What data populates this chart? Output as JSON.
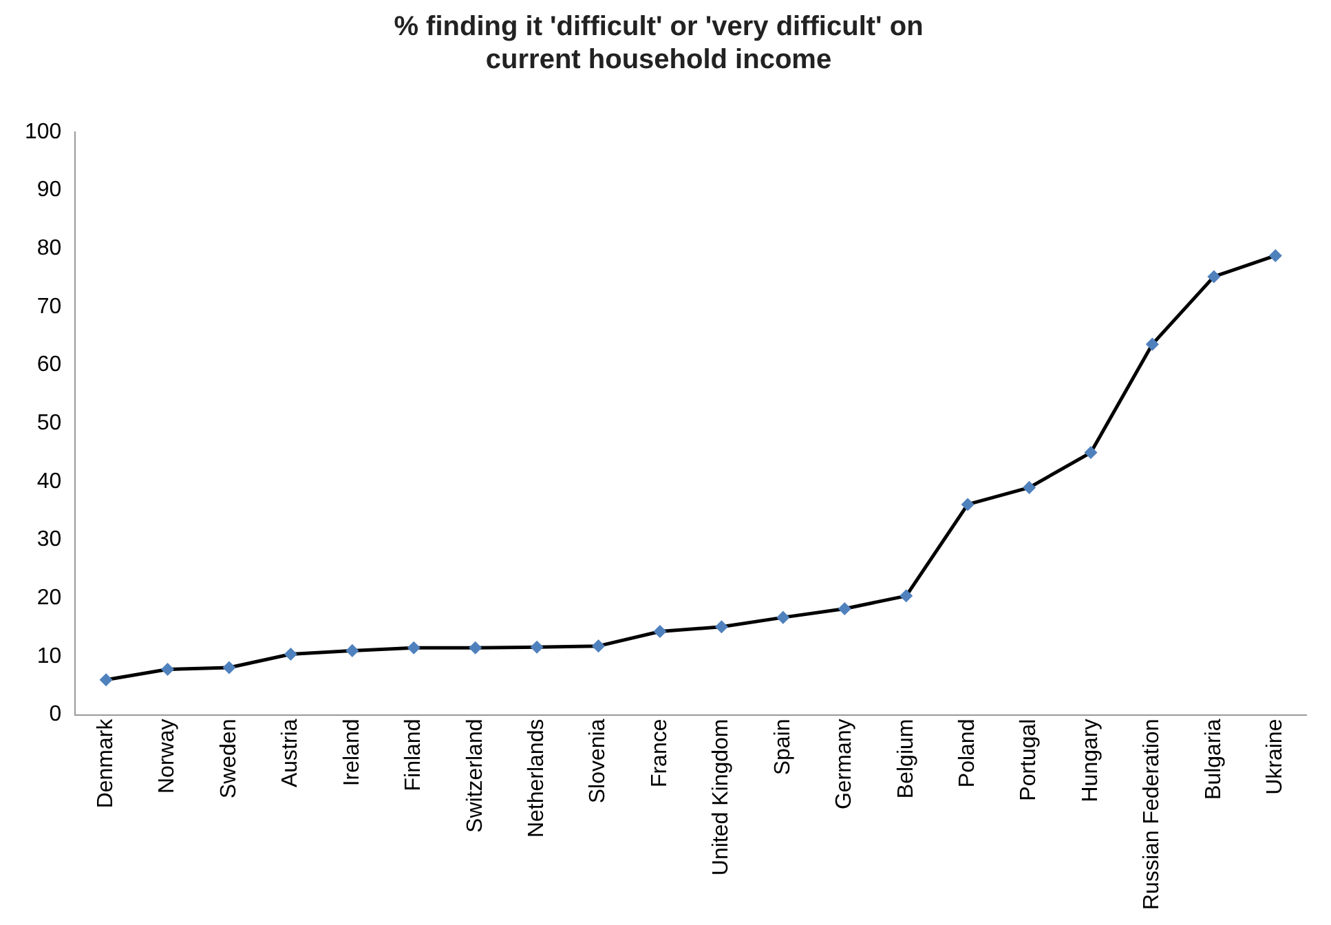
{
  "chart_data": {
    "type": "line",
    "title": [
      "% finding it 'difficult' or 'very difficult' on",
      "current household income"
    ],
    "categories": [
      "Denmark",
      "Norway",
      "Sweden",
      "Austria",
      "Ireland",
      "Finland",
      "Switzerland",
      "Netherlands",
      "Slovenia",
      "France",
      "United Kingdom",
      "Spain",
      "Germany",
      "Belgium",
      "Poland",
      "Portugal",
      "Hungary",
      "Russian Federation",
      "Bulgaria",
      "Ukraine"
    ],
    "series": [
      {
        "color": "#000000",
        "colors": [
          "#4f81bd",
          "#4f81bd",
          "#4f81bd",
          "#4f81bd",
          "#4f81bd",
          "#4f81bd",
          "#4f81bd",
          "#4f81bd",
          "#4f81bd",
          "#4f81bd",
          "#4f81bd",
          "#4f81bd",
          "#4f81bd",
          "#4f81bd",
          "#4f81bd",
          "#4f81bd",
          "#4f81bd",
          "#4f81bd",
          "#4f81bd",
          "#4f81bd"
        ],
        "values": [
          6.0,
          7.8,
          8.1,
          10.4,
          11.0,
          11.5,
          11.5,
          11.6,
          11.8,
          14.3,
          15.1,
          16.7,
          18.2,
          20.4,
          36.1,
          39.0,
          45.0,
          63.6,
          75.2,
          78.8
        ]
      }
    ],
    "ylim": [
      0,
      100
    ],
    "yticks": [
      0,
      10,
      20,
      30,
      40,
      50,
      60,
      70,
      80,
      90,
      100
    ],
    "grid": false,
    "legend": false,
    "marker": "diamond",
    "line_style": "solid"
  }
}
